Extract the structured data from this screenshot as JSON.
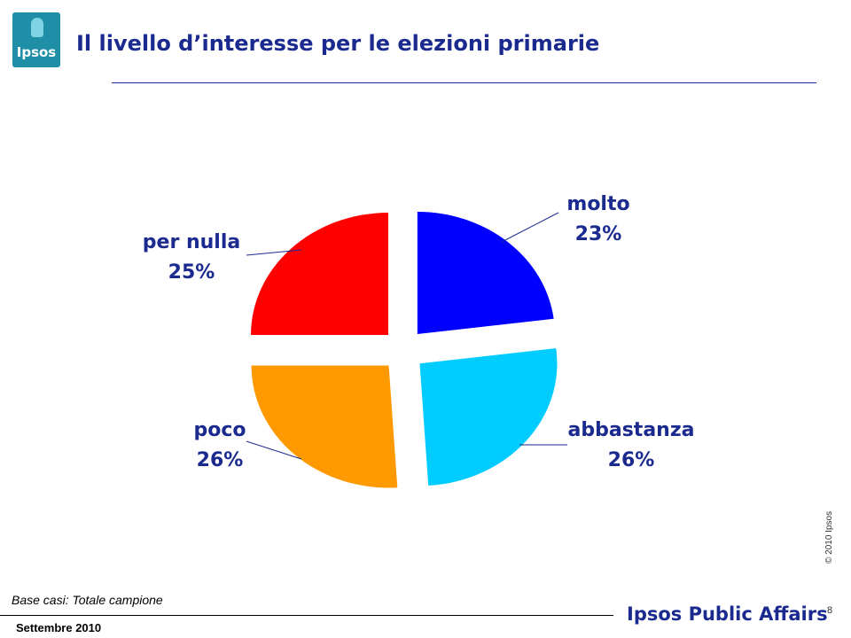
{
  "logo": {
    "text": "Ipsos"
  },
  "title": "Il livello d’interesse per le elezioni primarie",
  "chart_data": {
    "type": "pie",
    "title": "Il livello d’interesse per le elezioni primarie",
    "slices": [
      {
        "label": "molto",
        "value": 23,
        "value_label": "23%",
        "color": "#0000ff"
      },
      {
        "label": "abbastanza",
        "value": 26,
        "value_label": "26%",
        "color": "#00ccff"
      },
      {
        "label": "poco",
        "value": 26,
        "value_label": "26%",
        "color": "#ff9900"
      },
      {
        "label": "per nulla",
        "value": 25,
        "value_label": "25%",
        "color": "#ff0000"
      }
    ]
  },
  "copyright": "© 2010 Ipsos",
  "base": "Base casi: Totale campione",
  "brand": "Ipsos Public Affairs",
  "page_number": "8",
  "date": "Settembre 2010"
}
